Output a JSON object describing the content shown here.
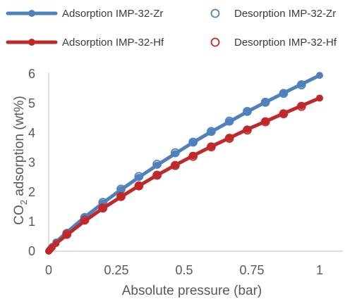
{
  "chart_data": {
    "type": "line",
    "xlabel": "Absolute pressure (bar)",
    "ylabel_main": "CO",
    "ylabel_sub": "2",
    "ylabel_rest": " adsorption (wt%)",
    "xlim": [
      0,
      1
    ],
    "ylim": [
      0,
      6
    ],
    "x_ticks": [
      "0",
      "0.25",
      "0.5",
      "0.75",
      "1"
    ],
    "y_ticks": [
      "0",
      "1",
      "2",
      "3",
      "4",
      "5",
      "6"
    ],
    "grid": false,
    "legend_position": "top",
    "series": [
      {
        "name": "Adsorption IMP-32-Zr",
        "style": "line-filled-marker",
        "color": "#4f81bd",
        "x": [
          0,
          0.003,
          0.007,
          0.013,
          0.027,
          0.067,
          0.133,
          0.2,
          0.267,
          0.333,
          0.4,
          0.467,
          0.533,
          0.6,
          0.667,
          0.733,
          0.8,
          0.867,
          0.933,
          1.0
        ],
        "y": [
          0,
          0.04,
          0.09,
          0.16,
          0.31,
          0.64,
          1.15,
          1.63,
          2.08,
          2.5,
          2.91,
          3.3,
          3.68,
          4.04,
          4.38,
          4.72,
          5.04,
          5.35,
          5.65,
          5.95
        ]
      },
      {
        "name": "Desorption IMP-32-Zr",
        "style": "open-marker",
        "color": "#4f81bd",
        "x": [
          0.067,
          0.133,
          0.2,
          0.267,
          0.333,
          0.4,
          0.467,
          0.533,
          0.6,
          0.667,
          0.733,
          0.8,
          0.867,
          0.933
        ],
        "y": [
          0.6,
          1.14,
          1.65,
          2.1,
          2.53,
          2.94,
          3.33,
          3.69,
          4.05,
          4.4,
          4.73,
          5.04,
          5.34,
          5.63
        ]
      },
      {
        "name": "Adsorption IMP-32-Hf",
        "style": "line-filled-marker",
        "color": "#c0292a",
        "x": [
          0,
          0.003,
          0.007,
          0.013,
          0.027,
          0.067,
          0.133,
          0.2,
          0.267,
          0.333,
          0.4,
          0.467,
          0.533,
          0.6,
          0.667,
          0.733,
          0.8,
          0.867,
          0.933,
          1.0
        ],
        "y": [
          0,
          0.03,
          0.07,
          0.13,
          0.26,
          0.55,
          1.02,
          1.45,
          1.84,
          2.21,
          2.57,
          2.91,
          3.23,
          3.54,
          3.83,
          4.12,
          4.39,
          4.66,
          4.92,
          5.18
        ]
      },
      {
        "name": "Desorption IMP-32-Hf",
        "style": "open-marker",
        "color": "#c0292a",
        "x": [
          0.067,
          0.133,
          0.2,
          0.267,
          0.333,
          0.4,
          0.467,
          0.533,
          0.6,
          0.667,
          0.733,
          0.8,
          0.867,
          0.933
        ],
        "y": [
          0.57,
          1.05,
          1.46,
          1.85,
          2.21,
          2.57,
          2.9,
          3.21,
          3.53,
          3.82,
          4.1,
          4.38,
          4.65,
          4.9
        ]
      }
    ]
  }
}
